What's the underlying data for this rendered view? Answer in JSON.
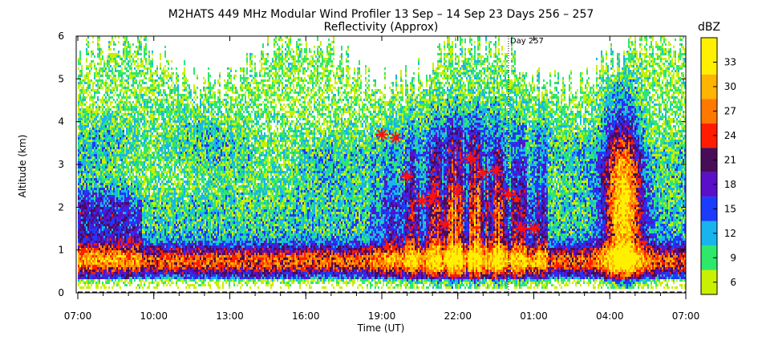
{
  "chart_data": {
    "type": "heatmap",
    "title": "M2HATS 449 MHz Modular Wind Profiler  13 Sep – 14 Sep 23 Days 256 – 257",
    "subtitle": "Reflectivity (Approx)",
    "xlabel": "Time (UT)",
    "ylabel": "Altitude (km)",
    "x_ticks": [
      "07:00",
      "10:00",
      "13:00",
      "16:00",
      "19:00",
      "22:00",
      "01:00",
      "04:00",
      "07:00"
    ],
    "y_ticks": [
      "0",
      "1",
      "2",
      "3",
      "4",
      "5",
      "6"
    ],
    "ylim": [
      0,
      6
    ],
    "xlim_hours": [
      0,
      24
    ],
    "colorbar": {
      "label": "dBZ",
      "ticks": [
        "6",
        "9",
        "12",
        "15",
        "18",
        "21",
        "24",
        "27",
        "30",
        "33"
      ],
      "range": [
        4.5,
        36
      ],
      "bins": [
        {
          "from": 4.5,
          "to": 7.5,
          "color": "#c8f000"
        },
        {
          "from": 7.5,
          "to": 10.5,
          "color": "#2ee86c"
        },
        {
          "from": 10.5,
          "to": 13.5,
          "color": "#18b4ee"
        },
        {
          "from": 13.5,
          "to": 16.5,
          "color": "#1b3bff"
        },
        {
          "from": 16.5,
          "to": 19.5,
          "color": "#5a10c8"
        },
        {
          "from": 19.5,
          "to": 22.5,
          "color": "#480c58"
        },
        {
          "from": 22.5,
          "to": 25.5,
          "color": "#ff1c00"
        },
        {
          "from": 25.5,
          "to": 28.5,
          "color": "#ff7800"
        },
        {
          "from": 28.5,
          "to": 31.5,
          "color": "#ffb400"
        },
        {
          "from": 31.5,
          "to": 36,
          "color": "#fff000"
        }
      ]
    },
    "day_marker": {
      "label": "Day 257",
      "hour": 17.0
    },
    "markers": [
      {
        "hour": 12.0,
        "alt": 3.7
      },
      {
        "hour": 12.55,
        "alt": 3.62
      },
      {
        "hour": 13.0,
        "alt": 2.72
      },
      {
        "hour": 13.6,
        "alt": 2.15
      },
      {
        "hour": 14.0,
        "alt": 2.25
      },
      {
        "hour": 14.5,
        "alt": 1.6
      },
      {
        "hour": 15.0,
        "alt": 2.38
      },
      {
        "hour": 15.5,
        "alt": 3.15
      },
      {
        "hour": 16.0,
        "alt": 2.8
      },
      {
        "hour": 16.5,
        "alt": 2.85
      },
      {
        "hour": 17.0,
        "alt": 2.3
      },
      {
        "hour": 17.5,
        "alt": 1.5
      },
      {
        "hour": 18.0,
        "alt": 1.5
      }
    ]
  }
}
